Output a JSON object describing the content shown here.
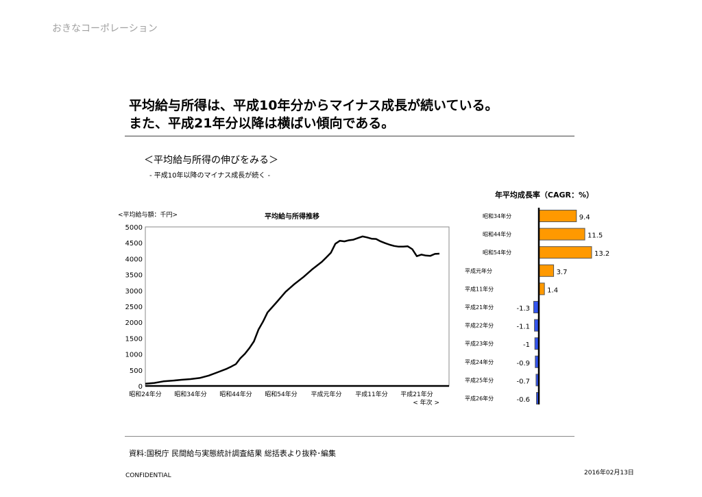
{
  "logo": "おきなコーポレーション",
  "headline": [
    "平均給与所得は、平成10年分からマイナス成長が続いている。",
    "また、平成21年分以降は横ばい傾向である。"
  ],
  "subtitle": "＜平均給与所得の伸びをみる＞",
  "subsubtitle": "-  平成10年以降のマイナス成長が続く  -",
  "source": "資料:国税庁  民間給与実態統計調査結果   総括表より抜粋･編集",
  "confidential": "CONFIDENTIAL",
  "date": "2016年02月13日",
  "chart_data": [
    {
      "type": "line",
      "title": "平均給与所得推移",
      "ylabel": "<平均給与額：千円>",
      "xlabel": "< 年次 >",
      "ylim": [
        0,
        5000
      ],
      "yticks": [
        "0",
        "500",
        "1000",
        "1500",
        "2000",
        "2500",
        "3000",
        "3500",
        "4000",
        "4500",
        "5000"
      ],
      "xticks": [
        "昭和24年分",
        "昭和34年分",
        "昭和44年分",
        "昭和54年分",
        "平成元年分",
        "平成11年分",
        "平成21年分"
      ],
      "grid": false,
      "color": "#000000",
      "points": [
        [
          "昭和24年分",
          70
        ],
        [
          "昭和26年分",
          95
        ],
        [
          "昭和28年分",
          145
        ],
        [
          "昭和30年分",
          165
        ],
        [
          "昭和32年分",
          195
        ],
        [
          "昭和34年分",
          215
        ],
        [
          "昭和36年分",
          250
        ],
        [
          "昭和38年分",
          325
        ],
        [
          "昭和40年分",
          430
        ],
        [
          "昭和42年分",
          540
        ],
        [
          "昭和43年分",
          610
        ],
        [
          "昭和44年分",
          685
        ],
        [
          "昭和45年分",
          870
        ],
        [
          "昭和46年分",
          1010
        ],
        [
          "昭和47年分",
          1190
        ],
        [
          "昭和48年分",
          1400
        ],
        [
          "昭和49年分",
          1770
        ],
        [
          "昭和50年分",
          2020
        ],
        [
          "昭和51年分",
          2310
        ],
        [
          "昭和53年分",
          2630
        ],
        [
          "昭和55年分",
          2960
        ],
        [
          "昭和57年分",
          3210
        ],
        [
          "昭和59年分",
          3430
        ],
        [
          "昭和61年分",
          3680
        ],
        [
          "昭和63年分",
          3900
        ],
        [
          "平成元年分",
          4040
        ],
        [
          "平成2年分",
          4185
        ],
        [
          "平成3年分",
          4470
        ],
        [
          "平成4年分",
          4565
        ],
        [
          "平成5年分",
          4545
        ],
        [
          "平成6年分",
          4580
        ],
        [
          "平成7年分",
          4600
        ],
        [
          "平成8年分",
          4650
        ],
        [
          "平成9年分",
          4700
        ],
        [
          "平成10年分",
          4670
        ],
        [
          "平成11年分",
          4630
        ],
        [
          "平成12年分",
          4620
        ],
        [
          "平成13年分",
          4545
        ],
        [
          "平成14年分",
          4490
        ],
        [
          "平成15年分",
          4440
        ],
        [
          "平成16年分",
          4400
        ],
        [
          "平成17年分",
          4380
        ],
        [
          "平成18年分",
          4380
        ],
        [
          "平成19年分",
          4390
        ],
        [
          "平成20年分",
          4300
        ],
        [
          "平成21年分",
          4080
        ],
        [
          "平成22年分",
          4130
        ],
        [
          "平成23年分",
          4100
        ],
        [
          "平成24年分",
          4090
        ],
        [
          "平成25年分",
          4150
        ],
        [
          "平成26年分",
          4160
        ]
      ]
    },
    {
      "type": "bar",
      "orientation": "horizontal",
      "title": "年平均成長率（CAGR：%）",
      "categories": [
        "昭和34年分",
        "昭和44年分",
        "昭和54年分",
        "平成元年分",
        "平成11年分",
        "平成21年分",
        "平成22年分",
        "平成23年分",
        "平成24年分",
        "平成25年分",
        "平成26年分"
      ],
      "values": [
        9.4,
        11.5,
        13.2,
        3.7,
        1.4,
        -1.3,
        -1.1,
        -1,
        -0.9,
        -0.7,
        -0.6
      ],
      "labels": [
        "9.4",
        "11.5",
        "13.2",
        "3.7",
        "1.4",
        "-1.3",
        "-1.1",
        "-1",
        "-0.9",
        "-0.7",
        "-0.6"
      ],
      "positive_color": "#ff9900",
      "negative_color": "#3355ee"
    }
  ]
}
